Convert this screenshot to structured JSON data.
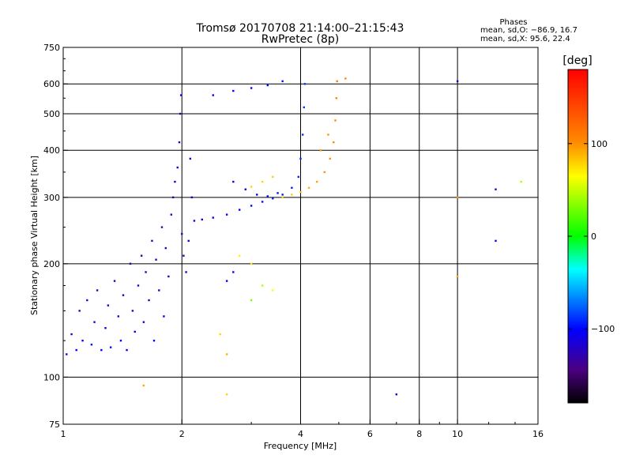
{
  "chart_data": {
    "type": "scatter",
    "title": "Tromsø 20170708 21:14:00–21:15:43",
    "subtitle": "RwPretec (8p)",
    "xlabel": "Frequency [MHz]",
    "ylabel": "Stationary phase Virtual Height [km]",
    "x_scale": "log",
    "y_scale": "log",
    "xlim": [
      1,
      16
    ],
    "ylim": [
      75,
      750
    ],
    "xticks": [
      1,
      2,
      4,
      6,
      8,
      10,
      16
    ],
    "yticks": [
      75,
      100,
      200,
      300,
      400,
      500,
      600,
      750
    ],
    "x_tick_labels": [
      "1",
      "2",
      "4",
      "6",
      "8",
      "10",
      "16"
    ],
    "y_tick_labels": [
      "75",
      "100",
      "200",
      "300",
      "400",
      "500",
      "600",
      "750"
    ],
    "grid": true,
    "phases_info": {
      "heading": "Phases",
      "line1": "mean, sd,O: −86.9, 16.7",
      "line2": "mean, sd,X:  95.6, 22.4"
    },
    "colorbar": {
      "label": "[deg]",
      "range": [
        -180,
        180
      ],
      "ticks": [
        100,
        0,
        -100
      ],
      "tick_labels": [
        "100",
        "0",
        "−100"
      ],
      "colors": [
        "#ff0000",
        "#ff7f00",
        "#ffff00",
        "#00ff00",
        "#00ffff",
        "#0000ff",
        "#4b0082",
        "#000000"
      ]
    },
    "series": [
      {
        "values_description": "each point = [frequency MHz, virtual height km, phase deg]",
        "points": [
          [
            1.02,
            115,
            -110
          ],
          [
            1.05,
            130,
            -120
          ],
          [
            1.08,
            118,
            -100
          ],
          [
            1.1,
            150,
            -115
          ],
          [
            1.12,
            125,
            -105
          ],
          [
            1.15,
            160,
            -120
          ],
          [
            1.18,
            122,
            -95
          ],
          [
            1.2,
            140,
            -110
          ],
          [
            1.22,
            170,
            -125
          ],
          [
            1.25,
            118,
            -100
          ],
          [
            1.28,
            135,
            -108
          ],
          [
            1.3,
            155,
            -118
          ],
          [
            1.32,
            120,
            -96
          ],
          [
            1.35,
            180,
            -122
          ],
          [
            1.38,
            145,
            -112
          ],
          [
            1.4,
            125,
            -100
          ],
          [
            1.42,
            165,
            -120
          ],
          [
            1.45,
            118,
            -105
          ],
          [
            1.48,
            200,
            -124
          ],
          [
            1.5,
            150,
            -113
          ],
          [
            1.52,
            132,
            -102
          ],
          [
            1.55,
            175,
            -119
          ],
          [
            1.58,
            210,
            -126
          ],
          [
            1.6,
            140,
            -108
          ],
          [
            1.62,
            190,
            -121
          ],
          [
            1.65,
            160,
            -115
          ],
          [
            1.68,
            230,
            -127
          ],
          [
            1.7,
            125,
            -99
          ],
          [
            1.72,
            205,
            -123
          ],
          [
            1.75,
            170,
            -117
          ],
          [
            1.78,
            250,
            -128
          ],
          [
            1.8,
            145,
            -110
          ],
          [
            1.82,
            220,
            -124
          ],
          [
            1.85,
            185,
            -118
          ],
          [
            1.88,
            270,
            -125
          ],
          [
            1.9,
            300,
            -120
          ],
          [
            1.92,
            330,
            -115
          ],
          [
            1.95,
            360,
            -112
          ],
          [
            1.97,
            420,
            -110
          ],
          [
            1.98,
            500,
            -108
          ],
          [
            1.99,
            560,
            -106
          ],
          [
            2.0,
            240,
            -120
          ],
          [
            2.02,
            210,
            -118
          ],
          [
            2.05,
            190,
            -116
          ],
          [
            2.08,
            230,
            -114
          ],
          [
            2.1,
            380,
            -110
          ],
          [
            2.12,
            300,
            -112
          ],
          [
            2.15,
            260,
            -115
          ],
          [
            2.25,
            262,
            -108
          ],
          [
            2.4,
            265,
            -105
          ],
          [
            2.6,
            270,
            -102
          ],
          [
            2.8,
            278,
            -100
          ],
          [
            3.0,
            285,
            -98
          ],
          [
            3.2,
            292,
            -97
          ],
          [
            3.4,
            298,
            -96
          ],
          [
            3.6,
            305,
            -95
          ],
          [
            3.8,
            318,
            -94
          ],
          [
            3.95,
            340,
            -92
          ],
          [
            4.0,
            380,
            -90
          ],
          [
            4.05,
            440,
            -88
          ],
          [
            4.08,
            520,
            -86
          ],
          [
            4.1,
            600,
            -85
          ],
          [
            2.7,
            330,
            -110
          ],
          [
            2.9,
            315,
            -105
          ],
          [
            3.1,
            305,
            -100
          ],
          [
            3.3,
            302,
            -98
          ],
          [
            3.5,
            308,
            -96
          ],
          [
            2.4,
            560,
            -105
          ],
          [
            2.7,
            575,
            -102
          ],
          [
            3.0,
            585,
            -100
          ],
          [
            3.3,
            595,
            -98
          ],
          [
            3.6,
            610,
            -96
          ],
          [
            3.6,
            300,
            95
          ],
          [
            3.8,
            305,
            100
          ],
          [
            4.0,
            310,
            105
          ],
          [
            4.2,
            318,
            110
          ],
          [
            4.4,
            330,
            115
          ],
          [
            4.6,
            350,
            120
          ],
          [
            4.75,
            380,
            122
          ],
          [
            4.85,
            420,
            124
          ],
          [
            4.9,
            480,
            125
          ],
          [
            4.93,
            550,
            128
          ],
          [
            4.95,
            610,
            130
          ],
          [
            3.2,
            330,
            90
          ],
          [
            3.4,
            340,
            95
          ],
          [
            3.0,
            320,
            88
          ],
          [
            4.5,
            400,
            118
          ],
          [
            4.7,
            440,
            121
          ],
          [
            2.8,
            210,
            70
          ],
          [
            3.0,
            200,
            75
          ],
          [
            3.2,
            175,
            40
          ],
          [
            3.4,
            170,
            60
          ],
          [
            3.0,
            160,
            30
          ],
          [
            2.6,
            180,
            -100
          ],
          [
            2.7,
            190,
            -105
          ],
          [
            2.5,
            130,
            90
          ],
          [
            2.6,
            115,
            110
          ],
          [
            1.6,
            95,
            115
          ],
          [
            2.6,
            90,
            90
          ],
          [
            7.0,
            90,
            -110
          ],
          [
            10.0,
            610,
            -115
          ],
          [
            10.0,
            185,
            115
          ],
          [
            10.0,
            300,
            120
          ],
          [
            12.5,
            315,
            -110
          ],
          [
            12.5,
            230,
            -105
          ],
          [
            14.5,
            330,
            40
          ],
          [
            5.2,
            620,
            125
          ]
        ]
      }
    ]
  }
}
